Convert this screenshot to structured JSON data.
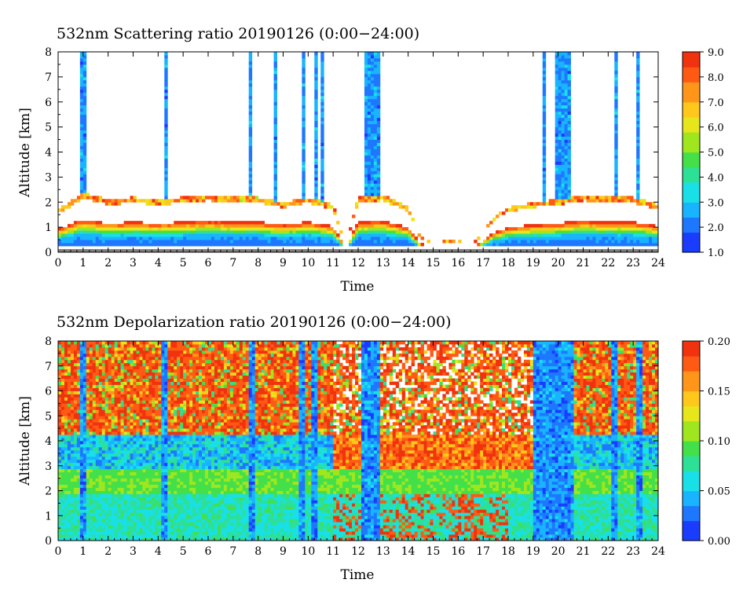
{
  "colors": {
    "scale": [
      "#1a3cff",
      "#1e78ff",
      "#19b4ff",
      "#19e0e6",
      "#2ce096",
      "#44e04a",
      "#a0e61e",
      "#e6e61a",
      "#ffc81a",
      "#ff961a",
      "#ff5a14",
      "#f0320f"
    ],
    "background": "#ffffff",
    "axis": "#000000"
  },
  "chart_data": [
    {
      "type": "heatmap",
      "title": "532nm Scattering ratio  20190126 (0:00−24:00)",
      "xlabel": "Time",
      "ylabel": "Altitude [km]",
      "xlim": [
        0,
        24
      ],
      "ylim": [
        0,
        8
      ],
      "xticks": [
        "0",
        "1",
        "2",
        "3",
        "4",
        "5",
        "6",
        "7",
        "8",
        "9",
        "10",
        "11",
        "12",
        "13",
        "14",
        "15",
        "16",
        "17",
        "18",
        "19",
        "20",
        "21",
        "22",
        "23",
        "24"
      ],
      "yticks": [
        "0",
        "1",
        "2",
        "3",
        "4",
        "5",
        "6",
        "7",
        "8"
      ],
      "colorbar": {
        "range": [
          1.0,
          9.0
        ],
        "ticks": [
          "1.0",
          "2.0",
          "3.0",
          "4.0",
          "5.0",
          "6.0",
          "7.0",
          "8.0",
          "9.0"
        ]
      },
      "boundary_layer_top_km": [
        [
          0,
          1.7
        ],
        [
          1,
          2.4
        ],
        [
          2,
          2.1
        ],
        [
          3,
          2.2
        ],
        [
          4,
          2.1
        ],
        [
          5,
          2.2
        ],
        [
          6,
          2.3
        ],
        [
          7,
          2.2
        ],
        [
          8,
          2.2
        ],
        [
          9,
          2.0
        ],
        [
          10,
          2.2
        ],
        [
          11,
          1.9
        ],
        [
          11.5,
          0.3
        ],
        [
          12,
          2.2
        ],
        [
          13,
          2.3
        ],
        [
          14,
          1.8
        ],
        [
          14.5,
          0.6
        ],
        [
          15,
          0.4
        ],
        [
          16,
          0.5
        ],
        [
          16.5,
          0.2
        ],
        [
          17.5,
          1.5
        ],
        [
          18,
          1.8
        ],
        [
          19,
          2.0
        ],
        [
          20,
          2.1
        ],
        [
          21,
          2.3
        ],
        [
          22,
          2.2
        ],
        [
          23,
          2.2
        ],
        [
          24,
          1.9
        ]
      ],
      "cloud_columns_hours": [
        1.0,
        4.3,
        7.7,
        8.7,
        9.8,
        10.3,
        10.6,
        12.5,
        19.4,
        20.0,
        22.3,
        23.2
      ]
    },
    {
      "type": "heatmap",
      "title": "532nm Depolarization ratio  20190126 (0:00−24:00)",
      "xlabel": "Time",
      "ylabel": "Altitude [km]",
      "xlim": [
        0,
        24
      ],
      "ylim": [
        0,
        8
      ],
      "xticks": [
        "0",
        "1",
        "2",
        "3",
        "4",
        "5",
        "6",
        "7",
        "8",
        "9",
        "10",
        "11",
        "12",
        "13",
        "14",
        "15",
        "16",
        "17",
        "18",
        "19",
        "20",
        "21",
        "22",
        "23",
        "24"
      ],
      "yticks": [
        "0",
        "1",
        "2",
        "3",
        "4",
        "5",
        "6",
        "7",
        "8"
      ],
      "colorbar": {
        "range": [
          0.0,
          0.2
        ],
        "ticks": [
          "0.00",
          "0.05",
          "0.10",
          "0.15",
          "0.20"
        ]
      },
      "low_depol_columns_hours": [
        1.0,
        4.3,
        7.7,
        9.8,
        10.3,
        12.5,
        19.4,
        20.0,
        22.3,
        23.2
      ]
    }
  ]
}
